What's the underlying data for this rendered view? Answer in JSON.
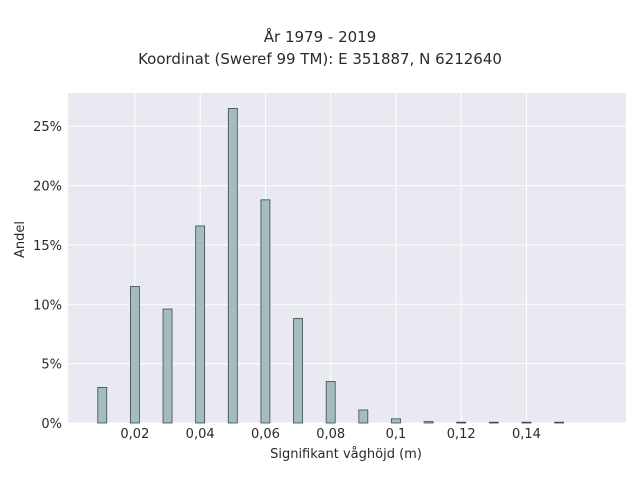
{
  "chart_data": {
    "type": "bar",
    "title": "År 1979 - 2019",
    "subtitle": "Koordinat (Sweref 99 TM): E 351887, N 6212640",
    "xlabel": "Signifikant våghöjd (m)",
    "ylabel": "Andel",
    "x": [
      0.01,
      0.02,
      0.03,
      0.04,
      0.05,
      0.06,
      0.07,
      0.08,
      0.09,
      0.1,
      0.11,
      0.12,
      0.13,
      0.14,
      0.15
    ],
    "values": [
      3.0,
      11.5,
      9.6,
      16.6,
      26.5,
      18.8,
      8.8,
      3.5,
      1.1,
      0.35,
      0.12,
      0.05,
      0.03,
      0.02,
      0.02
    ],
    "xlim": [
      -0.0005,
      0.1705
    ],
    "ylim": [
      0,
      27.8
    ],
    "xticks": [
      0.02,
      0.04,
      0.06,
      0.08,
      0.1,
      0.12,
      0.14
    ],
    "xtick_labels": [
      "0,02",
      "0,04",
      "0,06",
      "0,08",
      "0,1",
      "0,12",
      "0,14"
    ],
    "yticks": [
      0,
      5,
      10,
      15,
      20,
      25
    ],
    "ytick_labels": [
      "0%",
      "5%",
      "10%",
      "15%",
      "20%",
      "25%"
    ],
    "grid": true,
    "colors": {
      "bar": "#a4bcbc",
      "bar_edge": "#3a4a4a",
      "plot_bg": "#e9e9f1",
      "grid": "#ffffff"
    }
  }
}
